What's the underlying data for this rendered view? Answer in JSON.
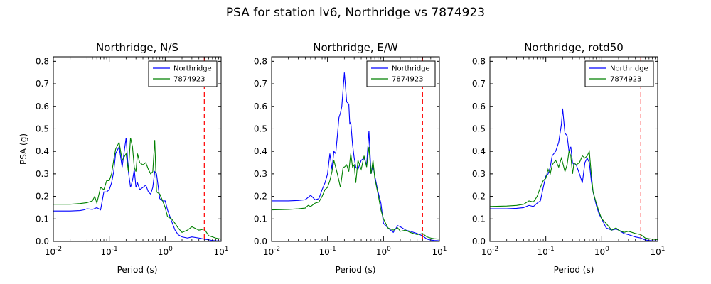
{
  "figure": {
    "title": "PSA for station lv6, Northridge vs 7874923"
  },
  "colors": {
    "northridge": "#0000ff",
    "event": "#008000",
    "marker": "#ff0000"
  },
  "chart_data": [
    {
      "type": "line",
      "title": "Northridge, N/S",
      "xlabel": "Period (s)",
      "ylabel": "PSA (g)",
      "xscale": "log",
      "xlim": [
        0.01,
        10
      ],
      "ylim": [
        0,
        0.82
      ],
      "yticks": [
        "0.0",
        "0.1",
        "0.2",
        "0.3",
        "0.4",
        "0.5",
        "0.6",
        "0.7",
        "0.8"
      ],
      "xticks": [
        {
          "base": "10",
          "exp": "-2"
        },
        {
          "base": "10",
          "exp": "-1"
        },
        {
          "base": "10",
          "exp": "0"
        },
        {
          "base": "10",
          "exp": "1"
        }
      ],
      "vline_x": 5,
      "legend": "top-right",
      "series": [
        {
          "name": "Northridge",
          "color": "#0000ff",
          "x": [
            0.01,
            0.02,
            0.03,
            0.035,
            0.04,
            0.05,
            0.06,
            0.07,
            0.08,
            0.09,
            0.1,
            0.11,
            0.12,
            0.13,
            0.15,
            0.17,
            0.19,
            0.2,
            0.22,
            0.24,
            0.26,
            0.28,
            0.3,
            0.32,
            0.35,
            0.4,
            0.45,
            0.5,
            0.55,
            0.6,
            0.65,
            0.7,
            0.8,
            0.9,
            1.0,
            1.1,
            1.3,
            1.5,
            1.7,
            2.0,
            2.5,
            3.0,
            4.0,
            5.0,
            6.0,
            7.0,
            8.0,
            10.0
          ],
          "y": [
            0.135,
            0.135,
            0.137,
            0.14,
            0.145,
            0.142,
            0.15,
            0.14,
            0.22,
            0.22,
            0.23,
            0.26,
            0.31,
            0.39,
            0.42,
            0.33,
            0.42,
            0.46,
            0.31,
            0.24,
            0.27,
            0.32,
            0.24,
            0.26,
            0.23,
            0.24,
            0.25,
            0.22,
            0.21,
            0.24,
            0.31,
            0.3,
            0.19,
            0.18,
            0.18,
            0.14,
            0.09,
            0.05,
            0.03,
            0.02,
            0.015,
            0.02,
            0.015,
            0.01,
            0.007,
            0.004,
            0.003,
            0.002
          ]
        },
        {
          "name": "7874923",
          "color": "#008000",
          "x": [
            0.01,
            0.02,
            0.03,
            0.04,
            0.05,
            0.055,
            0.06,
            0.07,
            0.08,
            0.09,
            0.1,
            0.11,
            0.12,
            0.13,
            0.15,
            0.17,
            0.19,
            0.2,
            0.22,
            0.24,
            0.26,
            0.28,
            0.3,
            0.32,
            0.35,
            0.4,
            0.45,
            0.5,
            0.55,
            0.6,
            0.65,
            0.7,
            0.8,
            0.9,
            1.0,
            1.1,
            1.3,
            1.5,
            1.7,
            2.0,
            2.5,
            3.0,
            4.0,
            5.0,
            6.0,
            7.0,
            8.0,
            10.0
          ],
          "y": [
            0.165,
            0.165,
            0.168,
            0.172,
            0.18,
            0.2,
            0.17,
            0.24,
            0.23,
            0.27,
            0.27,
            0.3,
            0.36,
            0.41,
            0.44,
            0.36,
            0.38,
            0.39,
            0.31,
            0.46,
            0.42,
            0.33,
            0.31,
            0.39,
            0.35,
            0.34,
            0.35,
            0.32,
            0.3,
            0.31,
            0.45,
            0.22,
            0.21,
            0.18,
            0.15,
            0.11,
            0.1,
            0.08,
            0.06,
            0.04,
            0.05,
            0.065,
            0.05,
            0.055,
            0.025,
            0.02,
            0.015,
            0.01
          ]
        }
      ]
    },
    {
      "type": "line",
      "title": "Northridge, E/W",
      "xlabel": "Period (s)",
      "ylabel": "",
      "xscale": "log",
      "xlim": [
        0.01,
        10
      ],
      "ylim": [
        0,
        0.82
      ],
      "yticks": [
        "0.0",
        "0.1",
        "0.2",
        "0.3",
        "0.4",
        "0.5",
        "0.6",
        "0.7",
        "0.8"
      ],
      "xticks": [
        {
          "base": "10",
          "exp": "-2"
        },
        {
          "base": "10",
          "exp": "-1"
        },
        {
          "base": "10",
          "exp": "0"
        },
        {
          "base": "10",
          "exp": "1"
        }
      ],
      "vline_x": 5,
      "legend": "top-right",
      "series": [
        {
          "name": "Northridge",
          "color": "#0000ff",
          "x": [
            0.01,
            0.02,
            0.03,
            0.04,
            0.05,
            0.06,
            0.07,
            0.08,
            0.09,
            0.1,
            0.11,
            0.12,
            0.13,
            0.14,
            0.15,
            0.16,
            0.17,
            0.18,
            0.2,
            0.22,
            0.24,
            0.25,
            0.26,
            0.28,
            0.3,
            0.32,
            0.35,
            0.4,
            0.45,
            0.5,
            0.55,
            0.6,
            0.65,
            0.7,
            0.8,
            0.9,
            1.0,
            1.2,
            1.5,
            1.8,
            2.0,
            2.5,
            3.0,
            4.0,
            5.0,
            6.0,
            7.0,
            8.0,
            10.0
          ],
          "y": [
            0.18,
            0.18,
            0.182,
            0.185,
            0.205,
            0.185,
            0.19,
            0.23,
            0.26,
            0.3,
            0.39,
            0.32,
            0.4,
            0.39,
            0.47,
            0.55,
            0.57,
            0.6,
            0.75,
            0.62,
            0.61,
            0.52,
            0.53,
            0.43,
            0.37,
            0.33,
            0.32,
            0.36,
            0.37,
            0.34,
            0.49,
            0.3,
            0.34,
            0.29,
            0.22,
            0.17,
            0.08,
            0.06,
            0.04,
            0.07,
            0.065,
            0.05,
            0.045,
            0.035,
            0.025,
            0.01,
            0.006,
            0.004,
            0.003
          ]
        },
        {
          "name": "7874923",
          "color": "#008000",
          "x": [
            0.01,
            0.02,
            0.03,
            0.04,
            0.045,
            0.05,
            0.06,
            0.07,
            0.08,
            0.09,
            0.1,
            0.11,
            0.12,
            0.13,
            0.15,
            0.17,
            0.19,
            0.2,
            0.22,
            0.24,
            0.26,
            0.28,
            0.3,
            0.32,
            0.35,
            0.4,
            0.45,
            0.5,
            0.55,
            0.6,
            0.65,
            0.7,
            0.8,
            0.9,
            1.0,
            1.2,
            1.5,
            1.8,
            2.0,
            2.5,
            3.0,
            4.0,
            5.0,
            6.0,
            7.0,
            8.0,
            10.0
          ],
          "y": [
            0.14,
            0.142,
            0.145,
            0.148,
            0.16,
            0.155,
            0.17,
            0.175,
            0.2,
            0.23,
            0.24,
            0.27,
            0.31,
            0.36,
            0.3,
            0.24,
            0.33,
            0.33,
            0.34,
            0.31,
            0.39,
            0.33,
            0.34,
            0.26,
            0.36,
            0.32,
            0.38,
            0.33,
            0.42,
            0.3,
            0.36,
            0.28,
            0.21,
            0.14,
            0.1,
            0.06,
            0.05,
            0.06,
            0.045,
            0.05,
            0.04,
            0.03,
            0.035,
            0.02,
            0.015,
            0.012,
            0.01
          ]
        }
      ]
    },
    {
      "type": "line",
      "title": "Northridge, rotd50",
      "xlabel": "Period (s)",
      "ylabel": "",
      "xscale": "log",
      "xlim": [
        0.01,
        10
      ],
      "ylim": [
        0,
        0.82
      ],
      "yticks": [
        "0.0",
        "0.1",
        "0.2",
        "0.3",
        "0.4",
        "0.5",
        "0.6",
        "0.7",
        "0.8"
      ],
      "xticks": [
        {
          "base": "10",
          "exp": "-2"
        },
        {
          "base": "10",
          "exp": "-1"
        },
        {
          "base": "10",
          "exp": "0"
        },
        {
          "base": "10",
          "exp": "1"
        }
      ],
      "vline_x": 5,
      "legend": "top-right",
      "series": [
        {
          "name": "Northridge",
          "color": "#0000ff",
          "x": [
            0.01,
            0.02,
            0.03,
            0.04,
            0.05,
            0.06,
            0.07,
            0.08,
            0.09,
            0.1,
            0.11,
            0.12,
            0.13,
            0.15,
            0.17,
            0.19,
            0.2,
            0.22,
            0.24,
            0.26,
            0.28,
            0.3,
            0.32,
            0.35,
            0.4,
            0.45,
            0.5,
            0.55,
            0.6,
            0.65,
            0.7,
            0.8,
            0.9,
            1.0,
            1.2,
            1.5,
            1.8,
            2.0,
            2.5,
            3.0,
            4.0,
            5.0,
            6.0,
            7.0,
            8.0,
            10.0
          ],
          "y": [
            0.145,
            0.145,
            0.147,
            0.15,
            0.16,
            0.155,
            0.17,
            0.18,
            0.24,
            0.29,
            0.3,
            0.33,
            0.38,
            0.4,
            0.44,
            0.52,
            0.59,
            0.48,
            0.47,
            0.4,
            0.42,
            0.35,
            0.34,
            0.34,
            0.3,
            0.26,
            0.35,
            0.37,
            0.35,
            0.27,
            0.22,
            0.16,
            0.12,
            0.1,
            0.06,
            0.05,
            0.055,
            0.05,
            0.035,
            0.03,
            0.02,
            0.015,
            0.006,
            0.004,
            0.003,
            0.002
          ]
        },
        {
          "name": "7874923",
          "color": "#008000",
          "x": [
            0.01,
            0.02,
            0.03,
            0.04,
            0.05,
            0.06,
            0.07,
            0.08,
            0.09,
            0.1,
            0.11,
            0.12,
            0.13,
            0.15,
            0.17,
            0.19,
            0.2,
            0.22,
            0.24,
            0.26,
            0.28,
            0.3,
            0.32,
            0.35,
            0.4,
            0.45,
            0.5,
            0.55,
            0.6,
            0.65,
            0.7,
            0.8,
            0.9,
            1.0,
            1.2,
            1.5,
            1.8,
            2.0,
            2.5,
            3.0,
            4.0,
            5.0,
            6.0,
            7.0,
            8.0,
            10.0
          ],
          "y": [
            0.155,
            0.157,
            0.16,
            0.165,
            0.18,
            0.175,
            0.2,
            0.24,
            0.27,
            0.28,
            0.32,
            0.3,
            0.34,
            0.36,
            0.33,
            0.37,
            0.35,
            0.31,
            0.34,
            0.4,
            0.38,
            0.3,
            0.35,
            0.34,
            0.35,
            0.38,
            0.37,
            0.38,
            0.4,
            0.3,
            0.22,
            0.17,
            0.13,
            0.1,
            0.08,
            0.05,
            0.06,
            0.05,
            0.04,
            0.045,
            0.035,
            0.03,
            0.015,
            0.012,
            0.01,
            0.008
          ]
        }
      ]
    }
  ]
}
